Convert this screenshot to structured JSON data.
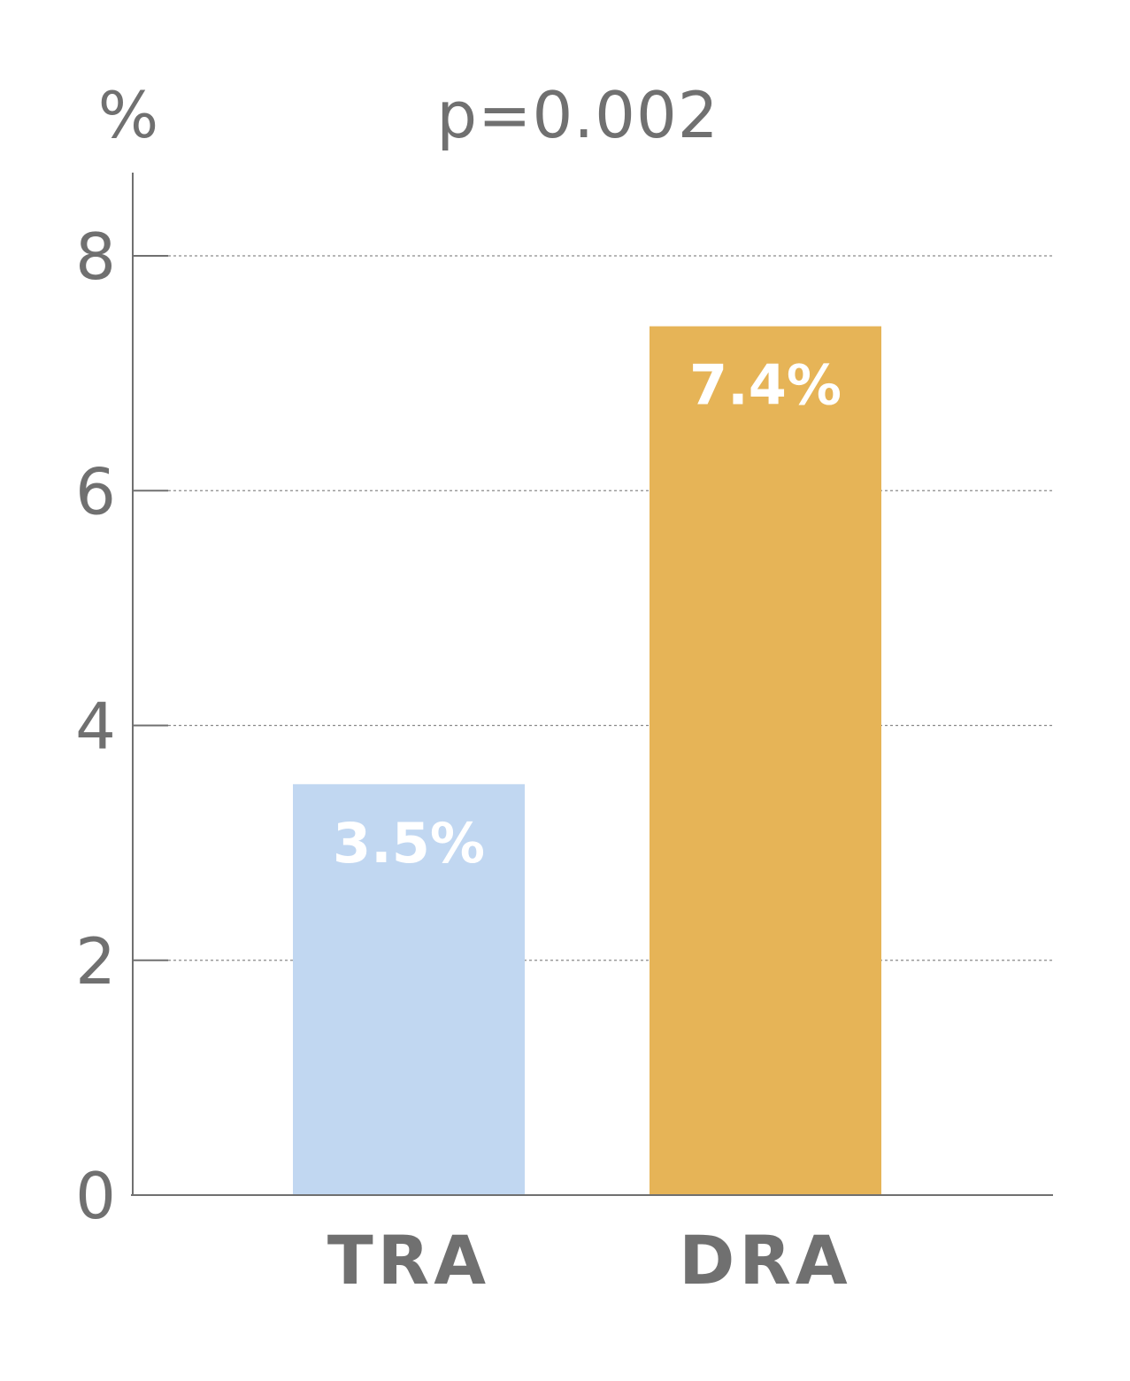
{
  "chart_data": {
    "type": "bar",
    "categories": [
      "TRA",
      "DRA"
    ],
    "values": [
      3.5,
      7.4
    ],
    "data_labels": [
      "3.5%",
      "7.4%"
    ],
    "bar_colors": [
      "#c1d7f1",
      "#e6b457"
    ],
    "y_unit_label": "%",
    "annotation": "p=0.002",
    "yticks": [
      0,
      2,
      4,
      6,
      8
    ],
    "ylim": [
      0,
      8.7
    ],
    "grid": true,
    "grid_style": "dotted",
    "axis_color": "#707070",
    "text_color": "#707070"
  }
}
